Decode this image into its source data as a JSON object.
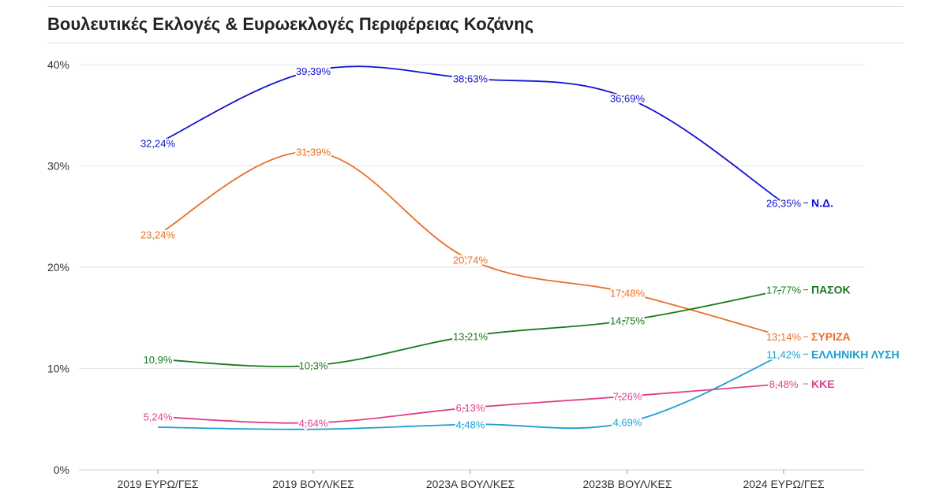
{
  "title": "Βουλευτικές Εκλογές & Ευρωεκλογές Περιφέρειας Κοζάνης",
  "chart_data": {
    "type": "line",
    "categories": [
      "2019 ΕΥΡΩ/ΓΕΣ",
      "2019 ΒΟΥΛ/ΚΕΣ",
      "2023Α ΒΟΥΛ/ΚΕΣ",
      "2023Β ΒΟΥΛ/ΚΕΣ",
      "2024 ΕΥΡΩ/ΓΕΣ"
    ],
    "ylim": [
      0,
      40
    ],
    "yticks": [
      0,
      10,
      20,
      30,
      40
    ],
    "ytick_labels": [
      "0%",
      "10%",
      "20%",
      "30%",
      "40%"
    ],
    "grid": true,
    "legend": "end-of-line labels",
    "series": [
      {
        "name": "Ν.Δ.",
        "color": "#1010d0",
        "values": [
          32.24,
          39.39,
          38.63,
          36.69,
          26.35
        ],
        "labels": [
          "32,24%",
          "39,39%",
          "38,63%",
          "36,69%",
          "26,35%"
        ]
      },
      {
        "name": "ΣΥΡΙΖΑ",
        "color": "#e8702a",
        "values": [
          23.24,
          31.39,
          20.74,
          17.48,
          13.14
        ],
        "labels": [
          "23,24%",
          "31,39%",
          "20,74%",
          "17,48%",
          "13,14%"
        ]
      },
      {
        "name": "ΠΑΣΟΚ",
        "color": "#1a7a1a",
        "values": [
          10.9,
          10.3,
          13.21,
          14.75,
          17.77
        ],
        "labels": [
          "10,9%",
          "10,3%",
          "13,21%",
          "14,75%",
          "17,77%"
        ]
      },
      {
        "name": "ΕΛΛΗΝΙΚΗ ΛΥΣΗ",
        "color": "#1aa0d0",
        "values": [
          4.2,
          4.0,
          4.48,
          4.69,
          11.42
        ],
        "labels": [
          "",
          "",
          "4,48%",
          "4,69%",
          "11,42%"
        ]
      },
      {
        "name": "ΚΚΕ",
        "color": "#e0408a",
        "values": [
          5.24,
          4.64,
          6.13,
          7.26,
          8.48
        ],
        "labels": [
          "5,24%",
          "4,64%",
          "6,13%",
          "7,26%",
          "8,48%"
        ]
      }
    ]
  }
}
